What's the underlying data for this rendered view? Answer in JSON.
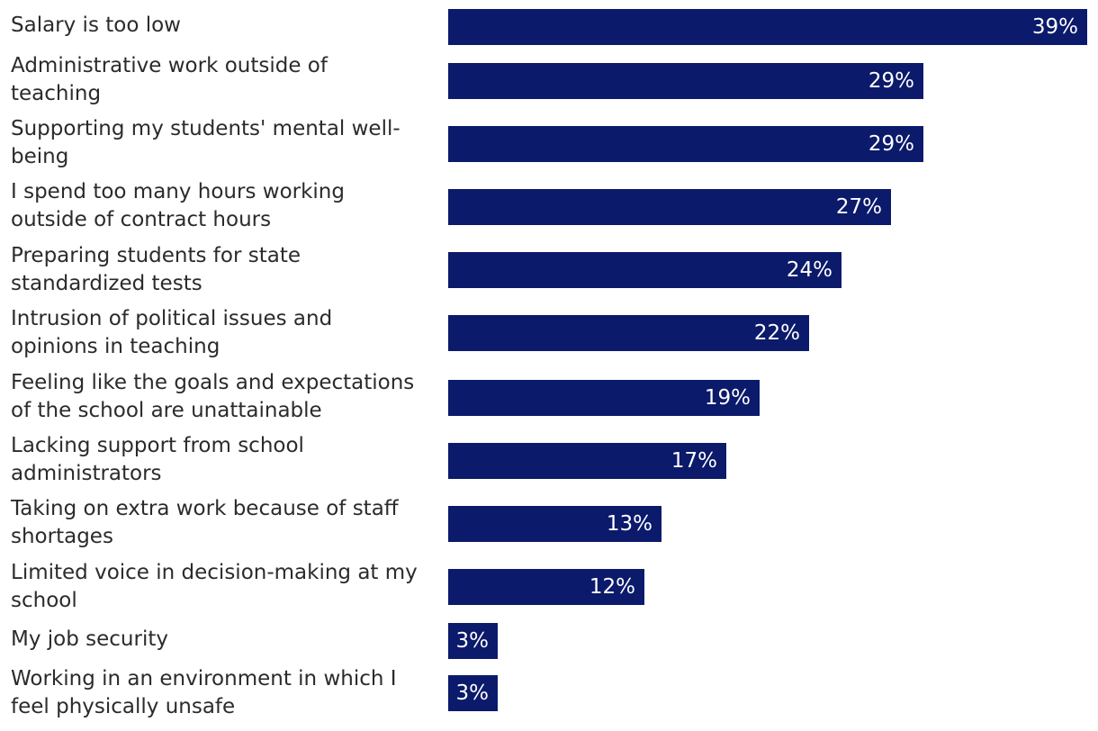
{
  "chart_data": {
    "type": "bar",
    "orientation": "horizontal",
    "bar_color": "#0b1a6b",
    "value_label_color": "#ffffff",
    "xlim": [
      0,
      39
    ],
    "grid": false,
    "categories": [
      "Salary is too low",
      "Administrative work outside of\nteaching",
      "Supporting my students' mental well-\nbeing",
      "I spend too many hours working\noutside of contract hours",
      "Preparing students for state\nstandardized tests",
      "Intrusion of political issues and\nopinions in teaching",
      "Feeling like the goals and expectations\nof the school are unattainable",
      "Lacking support from school\nadministrators",
      "Taking on extra work because of staff\nshortages",
      "Limited voice in decision-making at my\nschool",
      "My job security",
      "Working in an environment in which I\nfeel physically unsafe"
    ],
    "values": [
      39,
      29,
      29,
      27,
      24,
      22,
      19,
      17,
      13,
      12,
      3,
      3
    ],
    "value_labels": [
      "39%",
      "29%",
      "29%",
      "27%",
      "24%",
      "22%",
      "19%",
      "17%",
      "13%",
      "12%",
      "3%",
      "3%"
    ]
  }
}
